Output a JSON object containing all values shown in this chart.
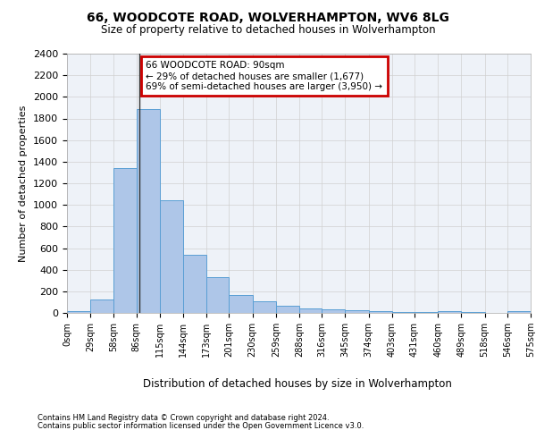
{
  "title1": "66, WOODCOTE ROAD, WOLVERHAMPTON, WV6 8LG",
  "title2": "Size of property relative to detached houses in Wolverhampton",
  "xlabel": "Distribution of detached houses by size in Wolverhampton",
  "ylabel": "Number of detached properties",
  "footer1": "Contains HM Land Registry data © Crown copyright and database right 2024.",
  "footer2": "Contains public sector information licensed under the Open Government Licence v3.0.",
  "annotation_title": "66 WOODCOTE ROAD: 90sqm",
  "annotation_line1": "← 29% of detached houses are smaller (1,677)",
  "annotation_line2": "69% of semi-detached houses are larger (3,950) →",
  "bar_color": "#aec6e8",
  "bar_edge_color": "#5a9fd4",
  "vline_color": "#333333",
  "annotation_box_color": "#cc0000",
  "property_sqm": 90,
  "bin_edges": [
    0,
    29,
    58,
    86,
    115,
    144,
    173,
    201,
    230,
    259,
    288,
    316,
    345,
    374,
    403,
    431,
    460,
    489,
    518,
    546,
    575
  ],
  "bar_heights": [
    20,
    125,
    1340,
    1890,
    1040,
    540,
    335,
    165,
    110,
    65,
    40,
    30,
    25,
    20,
    12,
    5,
    20,
    5,
    3,
    20
  ],
  "ylim": [
    0,
    2400
  ],
  "yticks": [
    0,
    200,
    400,
    600,
    800,
    1000,
    1200,
    1400,
    1600,
    1800,
    2000,
    2200,
    2400
  ],
  "background_color": "#ffffff",
  "grid_color": "#d0d0d0",
  "fig_width": 6.0,
  "fig_height": 5.0,
  "dpi": 100
}
